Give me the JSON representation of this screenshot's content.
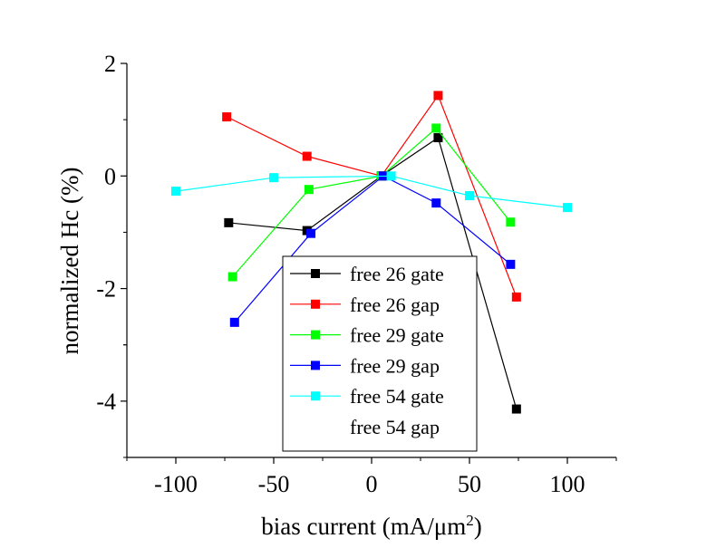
{
  "chart_data": {
    "type": "line",
    "xlabel": "bias current (mA/μm",
    "xlabel_superscript": "2",
    "xlabel_suffix": ")",
    "ylabel": "normalized Hc (%)",
    "xlim": [
      -125,
      125
    ],
    "ylim": [
      -5,
      2
    ],
    "x_ticks": [
      -100,
      -50,
      0,
      50,
      100
    ],
    "x_tick_labels": [
      "-100",
      "-50",
      "0",
      "50",
      "100"
    ],
    "y_ticks": [
      2,
      0,
      -2,
      -4
    ],
    "y_tick_labels": [
      "2",
      "0",
      "-2",
      "-4"
    ],
    "grid": false,
    "legend_position": "bottom-center",
    "series": [
      {
        "name": "free 26 gate",
        "color": "#000000",
        "points": [
          [
            -73,
            -0.83
          ],
          [
            -33,
            -0.97
          ],
          [
            5,
            0.0
          ],
          [
            34,
            0.68
          ],
          [
            74,
            -4.14
          ]
        ]
      },
      {
        "name": "free 26 gap",
        "color": "#ff0000",
        "points": [
          [
            -74,
            1.05
          ],
          [
            -33,
            0.35
          ],
          [
            5,
            0.0
          ],
          [
            34,
            1.43
          ],
          [
            74,
            -2.15
          ]
        ]
      },
      {
        "name": "free 29 gate",
        "color": "#00ff00",
        "points": [
          [
            -71,
            -1.79
          ],
          [
            -32,
            -0.24
          ],
          [
            5,
            0.0
          ],
          [
            33,
            0.85
          ],
          [
            71,
            -0.82
          ]
        ]
      },
      {
        "name": "free 29 gap",
        "color": "#0000ff",
        "points": [
          [
            -70,
            -2.6
          ],
          [
            -31,
            -1.02
          ],
          [
            6,
            0.0
          ],
          [
            33,
            -0.48
          ],
          [
            71,
            -1.57
          ]
        ]
      },
      {
        "name": "free 54 gate",
        "color": "#00ffff",
        "points": [
          [
            -100,
            -0.27
          ],
          [
            -50,
            -0.03
          ],
          [
            10,
            0.0
          ],
          [
            50,
            -0.35
          ],
          [
            100,
            -0.56
          ]
        ]
      },
      {
        "name": "free 54 gap",
        "color": "#ff00ff",
        "points": []
      }
    ]
  }
}
